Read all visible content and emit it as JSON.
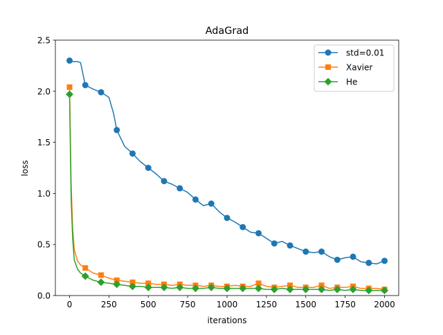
{
  "chart_data": {
    "type": "line",
    "title": "AdaGrad",
    "xlabel": "iterations",
    "ylabel": "loss",
    "xlim": [
      -90,
      2090
    ],
    "ylim": [
      0,
      2.5
    ],
    "x_ticks": [
      0,
      250,
      500,
      750,
      1000,
      1250,
      1500,
      1750,
      2000
    ],
    "y_ticks": [
      0.0,
      0.5,
      1.0,
      1.5,
      2.0,
      2.5
    ],
    "x_tick_labels": [
      "0",
      "250",
      "500",
      "750",
      "1000",
      "1250",
      "1500",
      "1750",
      "2000"
    ],
    "y_tick_labels": [
      "0.0",
      "0.5",
      "1.0",
      "1.5",
      "2.0",
      "2.5"
    ],
    "grid": false,
    "legend_position": "upper right",
    "marker_every": 100,
    "series": [
      {
        "name": "std=0.01",
        "color": "#1f77b4",
        "marker": "circle",
        "x": [
          0,
          20,
          50,
          70,
          100,
          150,
          200,
          250,
          280,
          300,
          350,
          400,
          450,
          500,
          550,
          600,
          650,
          700,
          750,
          800,
          850,
          900,
          950,
          1000,
          1050,
          1100,
          1150,
          1200,
          1250,
          1300,
          1350,
          1400,
          1450,
          1500,
          1550,
          1600,
          1650,
          1700,
          1750,
          1800,
          1850,
          1900,
          1950,
          2000
        ],
        "values": [
          2.3,
          2.29,
          2.29,
          2.28,
          2.06,
          2.02,
          1.99,
          1.94,
          1.78,
          1.62,
          1.46,
          1.39,
          1.31,
          1.25,
          1.19,
          1.12,
          1.09,
          1.05,
          1.01,
          0.94,
          0.88,
          0.9,
          0.82,
          0.76,
          0.72,
          0.67,
          0.62,
          0.61,
          0.56,
          0.51,
          0.53,
          0.49,
          0.46,
          0.43,
          0.42,
          0.43,
          0.38,
          0.35,
          0.37,
          0.38,
          0.33,
          0.32,
          0.31,
          0.34
        ]
      },
      {
        "name": "Xavier",
        "color": "#ff7f0e",
        "marker": "square",
        "x": [
          0,
          10,
          20,
          30,
          50,
          70,
          100,
          150,
          200,
          250,
          300,
          350,
          400,
          450,
          500,
          550,
          600,
          650,
          700,
          750,
          800,
          850,
          900,
          950,
          1000,
          1050,
          1100,
          1150,
          1200,
          1250,
          1300,
          1350,
          1400,
          1450,
          1500,
          1550,
          1600,
          1650,
          1700,
          1750,
          1800,
          1850,
          1900,
          1950,
          2000
        ],
        "values": [
          2.04,
          1.1,
          0.65,
          0.45,
          0.34,
          0.3,
          0.27,
          0.22,
          0.2,
          0.17,
          0.15,
          0.14,
          0.13,
          0.12,
          0.12,
          0.11,
          0.11,
          0.1,
          0.11,
          0.1,
          0.1,
          0.09,
          0.1,
          0.09,
          0.09,
          0.1,
          0.09,
          0.09,
          0.12,
          0.09,
          0.08,
          0.09,
          0.1,
          0.08,
          0.08,
          0.08,
          0.1,
          0.07,
          0.08,
          0.08,
          0.09,
          0.07,
          0.07,
          0.07,
          0.06
        ]
      },
      {
        "name": "He",
        "color": "#2ca02c",
        "marker": "diamond",
        "x": [
          0,
          10,
          20,
          30,
          50,
          70,
          100,
          150,
          200,
          250,
          300,
          350,
          400,
          450,
          500,
          550,
          600,
          650,
          700,
          750,
          800,
          850,
          900,
          950,
          1000,
          1050,
          1100,
          1150,
          1200,
          1250,
          1300,
          1350,
          1400,
          1450,
          1500,
          1550,
          1600,
          1650,
          1700,
          1750,
          1800,
          1850,
          1900,
          1950,
          2000
        ],
        "values": [
          1.97,
          0.95,
          0.55,
          0.35,
          0.26,
          0.22,
          0.19,
          0.15,
          0.13,
          0.12,
          0.11,
          0.1,
          0.09,
          0.09,
          0.08,
          0.08,
          0.08,
          0.07,
          0.08,
          0.07,
          0.07,
          0.07,
          0.08,
          0.07,
          0.07,
          0.07,
          0.07,
          0.07,
          0.07,
          0.06,
          0.06,
          0.07,
          0.06,
          0.06,
          0.06,
          0.06,
          0.06,
          0.05,
          0.06,
          0.05,
          0.06,
          0.05,
          0.05,
          0.05,
          0.05
        ]
      }
    ]
  }
}
